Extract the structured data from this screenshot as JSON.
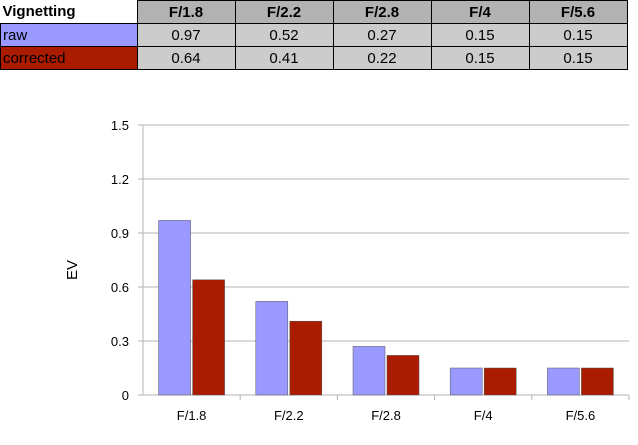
{
  "table": {
    "header": [
      "Vignetting",
      "F/1.8",
      "F/2.2",
      "F/2.8",
      "F/4",
      "F/5.6"
    ],
    "rows": [
      {
        "label": "raw",
        "values": [
          "0.97",
          "0.52",
          "0.27",
          "0.15",
          "0.15"
        ]
      },
      {
        "label": "corrected",
        "values": [
          "0.64",
          "0.41",
          "0.22",
          "0.15",
          "0.15"
        ]
      }
    ]
  },
  "colors": {
    "raw": "#9999ff",
    "corrected": "#aa1b00",
    "header_bg": "#b2b2b2",
    "cell_bg": "#cccccc",
    "grid": "#b3b3b3"
  },
  "chart_data": {
    "type": "bar",
    "categories": [
      "F/1.8",
      "F/2.2",
      "F/2.8",
      "F/4",
      "F/5.6"
    ],
    "series": [
      {
        "name": "raw",
        "values": [
          0.97,
          0.52,
          0.27,
          0.15,
          0.15
        ]
      },
      {
        "name": "corrected",
        "values": [
          0.64,
          0.41,
          0.22,
          0.15,
          0.15
        ]
      }
    ],
    "ylabel": "EV",
    "yticks": [
      "0",
      "0.3",
      "0.6",
      "0.9",
      "1.2",
      "1.5"
    ],
    "ylim": [
      0,
      1.5
    ],
    "grid": true
  }
}
